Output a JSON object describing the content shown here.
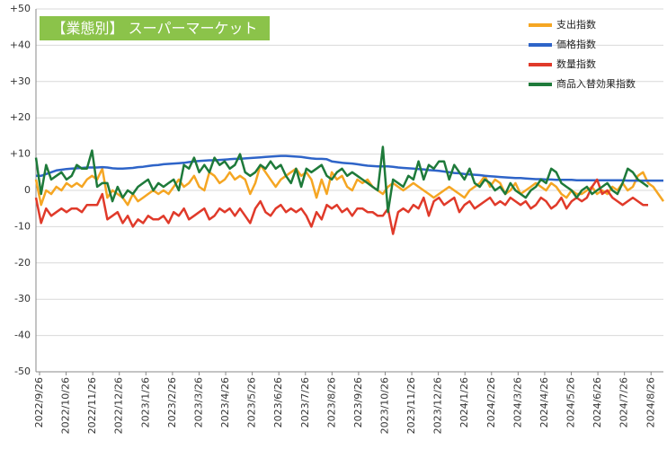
{
  "chart_data": {
    "type": "line",
    "title": "【業態別】 スーパーマーケット",
    "xlabel": "",
    "ylabel": "",
    "ylim": [
      -50,
      50
    ],
    "yticks": [
      "-50",
      "-40",
      "-30",
      "-20",
      "-10",
      "0",
      "+10",
      "+20",
      "+30",
      "+40",
      "+50"
    ],
    "grid": true,
    "legend_position": "top-right",
    "x_tick_labels": [
      "2022/9/26",
      "2022/10/26",
      "2022/11/26",
      "2022/12/26",
      "2023/1/26",
      "2023/2/26",
      "2023/3/26",
      "2023/4/26",
      "2023/5/26",
      "2023/6/26",
      "2023/7/26",
      "2023/8/26",
      "2023/9/26",
      "2023/10/26",
      "2023/11/26",
      "2023/12/26",
      "2024/1/26",
      "2024/2/26",
      "2024/3/26",
      "2024/4/26",
      "2024/5/26",
      "2024/6/26",
      "2024/7/26",
      "2024/8/26"
    ],
    "series": [
      {
        "name": "支出指数",
        "color": "#f5a623",
        "values": [
          3,
          -4,
          0,
          -1,
          1,
          0,
          2,
          1,
          2,
          1,
          3,
          4,
          3,
          6,
          -2,
          0,
          -1,
          -2,
          -4,
          -1,
          -3,
          -2,
          -1,
          0,
          -1,
          0,
          -1,
          1,
          3,
          1,
          2,
          4,
          1,
          0,
          5,
          4,
          2,
          3,
          5,
          3,
          4,
          3,
          -1,
          2,
          7,
          5,
          3,
          1,
          3,
          4,
          5,
          6,
          4,
          5,
          3,
          -2,
          3,
          -1,
          5,
          3,
          4,
          1,
          0,
          3,
          2,
          3,
          1,
          0,
          -1,
          1,
          2,
          1,
          0,
          1,
          2,
          1,
          0,
          -1,
          -2,
          -1,
          0,
          1,
          0,
          -1,
          -2,
          0,
          1,
          2,
          4,
          1,
          3,
          2,
          -1,
          0,
          2,
          -1,
          0,
          1,
          2,
          1,
          0,
          2,
          1,
          -1,
          -2,
          0,
          -1,
          -1,
          0,
          1,
          -1,
          0,
          -1,
          1,
          0,
          2,
          0,
          1,
          4,
          5,
          2,
          1,
          -1,
          -3
        ]
      },
      {
        "name": "価格指数",
        "color": "#2e64c8",
        "values": [
          4,
          4,
          4.5,
          5,
          5.5,
          5.7,
          5.9,
          6,
          6.1,
          6.2,
          6.3,
          6.3,
          6.3,
          6.4,
          6.3,
          6.1,
          6,
          6,
          6.1,
          6.2,
          6.4,
          6.5,
          6.7,
          6.9,
          7,
          7.2,
          7.3,
          7.4,
          7.5,
          7.6,
          7.8,
          8,
          8.1,
          8.2,
          8.3,
          8.3,
          8.4,
          8.5,
          8.6,
          8.7,
          8.7,
          8.8,
          8.9,
          9,
          9.1,
          9.2,
          9.3,
          9.4,
          9.5,
          9.5,
          9.4,
          9.3,
          9.2,
          9,
          8.8,
          8.7,
          8.7,
          8.6,
          8,
          7.8,
          7.6,
          7.5,
          7.4,
          7.2,
          7,
          6.8,
          6.7,
          6.6,
          6.6,
          6.6,
          6.5,
          6.3,
          6.2,
          6.1,
          6,
          5.9,
          5.8,
          5.6,
          5.5,
          5.4,
          5.2,
          5,
          4.8,
          4.7,
          4.5,
          4.4,
          4.3,
          4.2,
          4,
          3.9,
          3.8,
          3.7,
          3.6,
          3.5,
          3.4,
          3.4,
          3.3,
          3.2,
          3.1,
          3.1,
          3,
          3,
          2.9,
          2.9,
          2.9,
          2.9,
          2.8,
          2.8,
          2.8,
          2.8,
          2.8,
          2.8,
          2.8,
          2.8,
          2.8,
          2.8,
          2.7,
          2.7,
          2.7,
          2.7,
          2.7,
          2.7,
          2.7,
          2.7
        ]
      },
      {
        "name": "数量指数",
        "color": "#e03a2a",
        "values": [
          -2,
          -9,
          -5,
          -7,
          -6,
          -5,
          -6,
          -5,
          -5,
          -6,
          -4,
          -4,
          -4,
          -1,
          -8,
          -7,
          -6,
          -9,
          -7,
          -10,
          -8,
          -9,
          -7,
          -8,
          -8,
          -7,
          -9,
          -6,
          -7,
          -5,
          -8,
          -7,
          -6,
          -5,
          -8,
          -7,
          -5,
          -6,
          -5,
          -7,
          -5,
          -7,
          -9,
          -5,
          -3,
          -6,
          -7,
          -5,
          -4,
          -6,
          -5,
          -6,
          -5,
          -7,
          -10,
          -6,
          -8,
          -4,
          -5,
          -4,
          -6,
          -5,
          -7,
          -5,
          -5,
          -6,
          -6,
          -7,
          -7,
          -5,
          -12,
          -6,
          -5,
          -6,
          -4,
          -5,
          -2,
          -7,
          -3,
          -2,
          -4,
          -3,
          -2,
          -6,
          -4,
          -3,
          -5,
          -4,
          -3,
          -2,
          -4,
          -3,
          -4,
          -2,
          -3,
          -4,
          -3,
          -5,
          -4,
          -2,
          -3,
          -5,
          -4,
          -2,
          -5,
          -3,
          -2,
          -3,
          -2,
          1,
          3,
          -1,
          0,
          -2,
          -3,
          -4,
          -3,
          -2,
          -3,
          -4,
          -4
        ]
      },
      {
        "name": "商品入替効果指数",
        "color": "#1e7a3a",
        "values": [
          9,
          -1,
          7,
          3,
          4,
          5,
          3,
          4,
          7,
          6,
          6,
          11,
          1,
          2,
          2,
          -3,
          1,
          -2,
          0,
          -1,
          1,
          2,
          3,
          0,
          2,
          1,
          2,
          3,
          0,
          7,
          6,
          9,
          5,
          7,
          5,
          9,
          7,
          8,
          6,
          7,
          10,
          5,
          4,
          5,
          7,
          6,
          8,
          6,
          7,
          4,
          2,
          6,
          1,
          6,
          5,
          6,
          7,
          4,
          3,
          5,
          6,
          4,
          5,
          4,
          3,
          2,
          1,
          0,
          12,
          -6,
          3,
          2,
          1,
          4,
          3,
          8,
          3,
          7,
          6,
          8,
          8,
          3,
          7,
          5,
          3,
          6,
          2,
          1,
          3,
          2,
          0,
          1,
          -1,
          2,
          0,
          -1,
          -2,
          0,
          1,
          3,
          2,
          6,
          5,
          2,
          1,
          0,
          -2,
          0,
          1,
          -1,
          0,
          1,
          2,
          0,
          -1,
          2,
          6,
          5,
          3,
          2,
          1
        ]
      }
    ]
  }
}
